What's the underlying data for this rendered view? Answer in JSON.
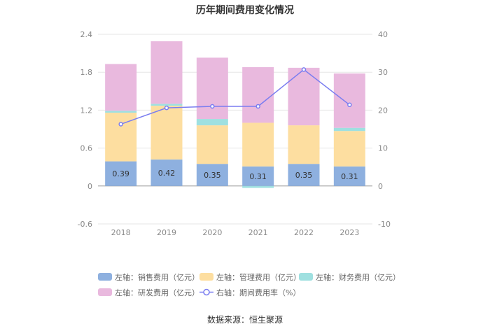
{
  "chart_data": {
    "type": "bar",
    "title": "历年期间费用变化情况",
    "categories": [
      "2018",
      "2019",
      "2020",
      "2021",
      "2022",
      "2023"
    ],
    "left_axis": {
      "min": -0.6,
      "max": 2.4,
      "ticks": [
        "-0.6",
        "0",
        "0.6",
        "1.2",
        "1.8",
        "2.4"
      ]
    },
    "right_axis": {
      "min": -10,
      "max": 40,
      "ticks": [
        "-10",
        "0",
        "10",
        "20",
        "30",
        "40"
      ]
    },
    "series": [
      {
        "name": "左轴：销售费用（亿元）",
        "axis": "left",
        "kind": "stacked-bar",
        "color": "#8eb0df",
        "values": [
          0.39,
          0.42,
          0.35,
          0.31,
          0.35,
          0.31
        ]
      },
      {
        "name": "左轴：管理费用（亿元）",
        "axis": "left",
        "kind": "stacked-bar",
        "color": "#fddea0",
        "values": [
          0.77,
          0.85,
          0.61,
          0.69,
          0.61,
          0.56
        ]
      },
      {
        "name": "左轴：财务费用（亿元）",
        "axis": "left",
        "kind": "stacked-bar",
        "color": "#9fe0e0",
        "values": [
          0.03,
          0.03,
          0.1,
          -0.03,
          0.0,
          0.05
        ]
      },
      {
        "name": "左轴：研发费用（亿元）",
        "axis": "left",
        "kind": "stacked-bar",
        "color": "#e9b9de",
        "values": [
          0.74,
          0.99,
          0.97,
          0.88,
          0.91,
          0.86
        ]
      },
      {
        "name": "右轴：期间费用率（%）",
        "axis": "right",
        "kind": "line",
        "color": "#7a7df0",
        "values": [
          16.3,
          20.6,
          21.0,
          21.0,
          30.7,
          21.4
        ]
      }
    ],
    "data_labels": [
      "0.39",
      "0.42",
      "0.35",
      "0.31",
      "0.35",
      "0.31"
    ],
    "legend_position": "bottom"
  },
  "source": "数据来源：恒生聚源"
}
